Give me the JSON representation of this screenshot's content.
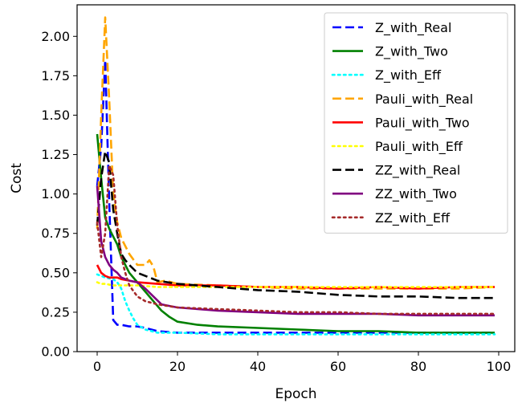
{
  "chart_data": {
    "type": "line",
    "title": "",
    "xlabel": "Epoch",
    "ylabel": "Cost",
    "xlim": [
      -5,
      104
    ],
    "ylim": [
      0.0,
      2.2
    ],
    "xticks": [
      0,
      20,
      40,
      60,
      80,
      100
    ],
    "yticks": [
      0.0,
      0.25,
      0.5,
      0.75,
      1.0,
      1.25,
      1.5,
      1.75,
      2.0
    ],
    "xtick_labels": [
      "0",
      "20",
      "40",
      "60",
      "80",
      "100"
    ],
    "ytick_labels": [
      "0.00",
      "0.25",
      "0.50",
      "0.75",
      "1.00",
      "1.25",
      "1.50",
      "1.75",
      "2.00"
    ],
    "grid": false,
    "legend_position": "upper-right",
    "series": [
      {
        "name": "Z_with_Real",
        "color": "#0000ff",
        "style": "dashed",
        "x": [
          0,
          1,
          2,
          3,
          4,
          5,
          6,
          8,
          10,
          12,
          15,
          20,
          30,
          40,
          50,
          60,
          70,
          80,
          90,
          99
        ],
        "y": [
          1.05,
          1.3,
          1.85,
          0.95,
          0.2,
          0.17,
          0.17,
          0.16,
          0.16,
          0.15,
          0.13,
          0.12,
          0.12,
          0.12,
          0.12,
          0.12,
          0.12,
          0.12,
          0.12,
          0.12
        ]
      },
      {
        "name": "Z_with_Two",
        "color": "#008000",
        "style": "solid",
        "x": [
          0,
          1,
          2,
          3,
          4,
          5,
          6,
          7,
          8,
          10,
          12,
          14,
          16,
          18,
          20,
          25,
          30,
          40,
          50,
          60,
          70,
          80,
          90,
          99
        ],
        "y": [
          1.38,
          1.1,
          0.85,
          0.78,
          0.73,
          0.68,
          0.6,
          0.55,
          0.5,
          0.44,
          0.38,
          0.32,
          0.26,
          0.22,
          0.19,
          0.17,
          0.16,
          0.15,
          0.14,
          0.13,
          0.13,
          0.12,
          0.12,
          0.12
        ]
      },
      {
        "name": "Z_with_Eff",
        "color": "#00ffff",
        "style": "dotted",
        "x": [
          0,
          2,
          4,
          5,
          6,
          7,
          8,
          9,
          10,
          12,
          15,
          20,
          30,
          40,
          50,
          60,
          70,
          80,
          90,
          99
        ],
        "y": [
          0.49,
          0.47,
          0.46,
          0.44,
          0.4,
          0.32,
          0.26,
          0.21,
          0.17,
          0.14,
          0.12,
          0.12,
          0.11,
          0.11,
          0.11,
          0.11,
          0.11,
          0.11,
          0.11,
          0.11
        ]
      },
      {
        "name": "Pauli_with_Real",
        "color": "#ffa500",
        "style": "dashed",
        "x": [
          0,
          1,
          2,
          3,
          4,
          5,
          6,
          8,
          10,
          12,
          13,
          14,
          15,
          17,
          20,
          30,
          40,
          50,
          60,
          70,
          80,
          90,
          99
        ],
        "y": [
          0.78,
          1.5,
          2.12,
          1.6,
          1.0,
          0.82,
          0.72,
          0.62,
          0.55,
          0.55,
          0.58,
          0.54,
          0.44,
          0.45,
          0.43,
          0.42,
          0.41,
          0.4,
          0.4,
          0.4,
          0.4,
          0.4,
          0.41
        ]
      },
      {
        "name": "Pauli_with_Two",
        "color": "#ff0000",
        "style": "solid",
        "x": [
          0,
          1,
          2,
          3,
          4,
          5,
          6,
          8,
          10,
          15,
          20,
          30,
          40,
          50,
          60,
          70,
          80,
          90,
          99
        ],
        "y": [
          0.55,
          0.5,
          0.48,
          0.47,
          0.47,
          0.47,
          0.46,
          0.45,
          0.44,
          0.43,
          0.42,
          0.42,
          0.41,
          0.41,
          0.4,
          0.41,
          0.4,
          0.41,
          0.41
        ]
      },
      {
        "name": "Pauli_with_Eff",
        "color": "#ffff00",
        "style": "dotted",
        "x": [
          0,
          1,
          2,
          4,
          6,
          8,
          10,
          15,
          20,
          30,
          40,
          50,
          60,
          70,
          80,
          90,
          99
        ],
        "y": [
          0.44,
          0.43,
          0.43,
          0.42,
          0.42,
          0.42,
          0.42,
          0.41,
          0.41,
          0.41,
          0.41,
          0.41,
          0.41,
          0.41,
          0.41,
          0.41,
          0.41
        ]
      },
      {
        "name": "ZZ_with_Real",
        "color": "#000000",
        "style": "dashed",
        "x": [
          0,
          1,
          2,
          3,
          4,
          5,
          6,
          7,
          8,
          10,
          12,
          15,
          20,
          30,
          40,
          50,
          60,
          70,
          80,
          90,
          99
        ],
        "y": [
          0.8,
          1.1,
          1.27,
          1.2,
          0.9,
          0.75,
          0.62,
          0.58,
          0.55,
          0.5,
          0.48,
          0.45,
          0.43,
          0.41,
          0.39,
          0.38,
          0.36,
          0.35,
          0.35,
          0.34,
          0.34
        ]
      },
      {
        "name": "ZZ_with_Two",
        "color": "#800080",
        "style": "solid",
        "x": [
          0,
          1,
          2,
          3,
          4,
          5,
          6,
          8,
          10,
          12,
          14,
          16,
          18,
          20,
          25,
          30,
          40,
          50,
          60,
          70,
          80,
          90,
          99
        ],
        "y": [
          1.05,
          0.7,
          0.6,
          0.55,
          0.52,
          0.5,
          0.47,
          0.45,
          0.44,
          0.4,
          0.35,
          0.3,
          0.29,
          0.28,
          0.27,
          0.26,
          0.25,
          0.24,
          0.24,
          0.24,
          0.23,
          0.23,
          0.23
        ]
      },
      {
        "name": "ZZ_with_Eff",
        "color": "#a52a2a",
        "style": "dotted",
        "x": [
          0,
          1,
          2,
          3,
          4,
          5,
          6,
          7,
          8,
          10,
          12,
          15,
          20,
          30,
          40,
          50,
          60,
          70,
          80,
          90,
          99
        ],
        "y": [
          0.82,
          0.6,
          0.75,
          1.18,
          1.12,
          0.8,
          0.6,
          0.5,
          0.42,
          0.35,
          0.32,
          0.3,
          0.28,
          0.27,
          0.26,
          0.25,
          0.25,
          0.24,
          0.24,
          0.24,
          0.24
        ]
      }
    ]
  }
}
